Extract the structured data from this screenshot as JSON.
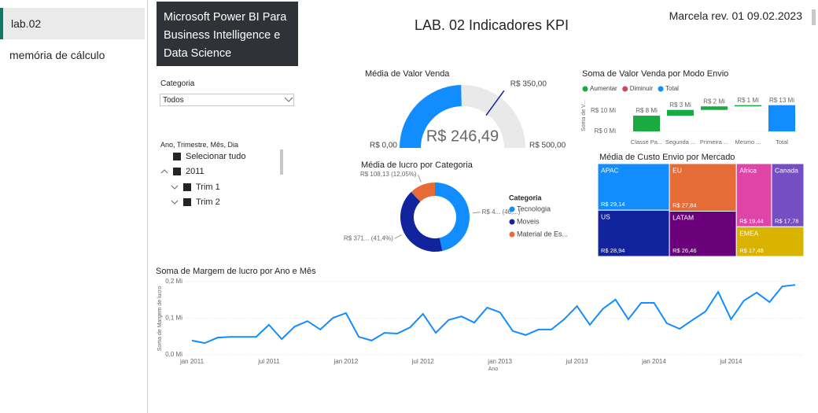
{
  "sidebar": {
    "pages": [
      "lab.02",
      "memória de cálculo"
    ]
  },
  "header": {
    "banner": "Microsoft Power BI Para Business Intelligence e Data Science",
    "title": "LAB. 02 Indicadores KPI",
    "author": "Marcela rev. 01 09.02.2023"
  },
  "slicers": {
    "category": {
      "label": "Categoria",
      "value": "Todos"
    },
    "date": {
      "label": "Ano, Trimestre, Mês, Dia",
      "items": [
        "Selecionar tudo",
        "2011",
        "Trim 1",
        "Trim 2"
      ]
    }
  },
  "chart_data": [
    {
      "type": "gauge",
      "title": "Média de Valor Venda",
      "value": 246.49,
      "value_label": "R$ 246,49",
      "ylim": [
        0,
        500
      ],
      "yticks": [
        {
          "value": 0,
          "label": "R$ 0,00"
        },
        {
          "value": 500,
          "label": "R$ 500,00"
        }
      ],
      "target": {
        "value": 350,
        "label": "R$ 350,00"
      },
      "color": "#118dff",
      "track_color": "#e9e9e9",
      "target_color": "#12239e"
    },
    {
      "type": "donut",
      "title": "Média de lucro por Categoria",
      "legend_title": "Categoria",
      "categories": [
        "Tecnologia",
        "Moveis",
        "Material de Es..."
      ],
      "values": [
        417.7,
        371.5,
        108.13
      ],
      "value_labels": [
        "R$ 4... (46,...)",
        "R$ 371... (41,4%)",
        "R$ 108,13 (12,05%)"
      ],
      "colors": [
        "#118dff",
        "#12239e",
        "#e66c37"
      ]
    },
    {
      "type": "waterfall",
      "title": "Soma de Valor Venda por Modo Envio",
      "y_label": "Soma de V...",
      "legend": [
        {
          "name": "Aumentar",
          "color": "#1aab40"
        },
        {
          "name": "Diminuir",
          "color": "#d64554"
        },
        {
          "name": "Total",
          "color": "#118dff"
        }
      ],
      "categories": [
        "Classe Pa...",
        "Segunda ...",
        "Primeira ...",
        "Mesmo ...",
        "Total"
      ],
      "values": [
        7.6,
        2.8,
        1.7,
        0.6,
        12.7
      ],
      "value_labels": [
        "R$ 8 Mi",
        "R$ 3 Mi",
        "R$ 2 Mi",
        "R$ 1 Mi",
        "R$ 13 Mi"
      ],
      "ylim": [
        0,
        16
      ],
      "yticks": [
        {
          "value": 0,
          "label": "R$ 0 Mi"
        },
        {
          "value": 10,
          "label": "R$ 10 Mi"
        }
      ]
    },
    {
      "type": "treemap",
      "title": "Média de Custo Envio por Mercado",
      "categories": [
        "APAC",
        "EU",
        "Africa",
        "Canada",
        "US",
        "LATAM",
        "EMEA"
      ],
      "values": [
        29.14,
        27.84,
        19.44,
        17.78,
        28.94,
        26.46,
        17.48
      ],
      "value_labels": [
        "R$ 29,14",
        "R$ 27,84",
        "R$ 19,44",
        "R$ 17,78",
        "R$ 28,94",
        "R$ 26,46",
        "R$ 17,48"
      ],
      "colors": [
        "#118dff",
        "#e66c37",
        "#e044a7",
        "#744ec2",
        "#12239e",
        "#6b007b",
        "#d9b300"
      ]
    },
    {
      "type": "line",
      "title": "Soma de Margem de lucro por Ano e Mês",
      "x_label": "Ano",
      "y_label": "Soma de Margem de lucro",
      "categories": [
        "jan 2011",
        null,
        null,
        null,
        null,
        null,
        "jul 2011",
        null,
        null,
        null,
        null,
        null,
        "jan 2012",
        null,
        null,
        null,
        null,
        null,
        "jul 2012",
        null,
        null,
        null,
        null,
        null,
        "jan 2013",
        null,
        null,
        null,
        null,
        null,
        "jul 2013",
        null,
        null,
        null,
        null,
        null,
        "jan 2014",
        null,
        null,
        null,
        null,
        null,
        "jul 2014",
        null,
        null,
        null,
        null,
        null
      ],
      "values": [
        0.039,
        0.032,
        0.047,
        0.049,
        0.049,
        0.049,
        0.082,
        0.043,
        0.077,
        0.092,
        0.069,
        0.101,
        0.114,
        0.049,
        0.039,
        0.06,
        0.058,
        0.075,
        0.112,
        0.06,
        0.095,
        0.105,
        0.088,
        0.129,
        0.116,
        0.065,
        0.054,
        0.069,
        0.069,
        0.097,
        0.133,
        0.082,
        0.125,
        0.151,
        0.097,
        0.142,
        0.142,
        0.086,
        0.071,
        0.095,
        0.118,
        0.172,
        0.097,
        0.148,
        0.17,
        0.144,
        0.187,
        0.191
      ],
      "color": "#118dff",
      "ylim": [
        0,
        0.2
      ],
      "yticks": [
        {
          "value": 0,
          "label": "0,0 Mi"
        },
        {
          "value": 0.1,
          "label": "0,1 Mi"
        },
        {
          "value": 0.2,
          "label": "0,2 Mi"
        }
      ],
      "grid": true
    }
  ]
}
